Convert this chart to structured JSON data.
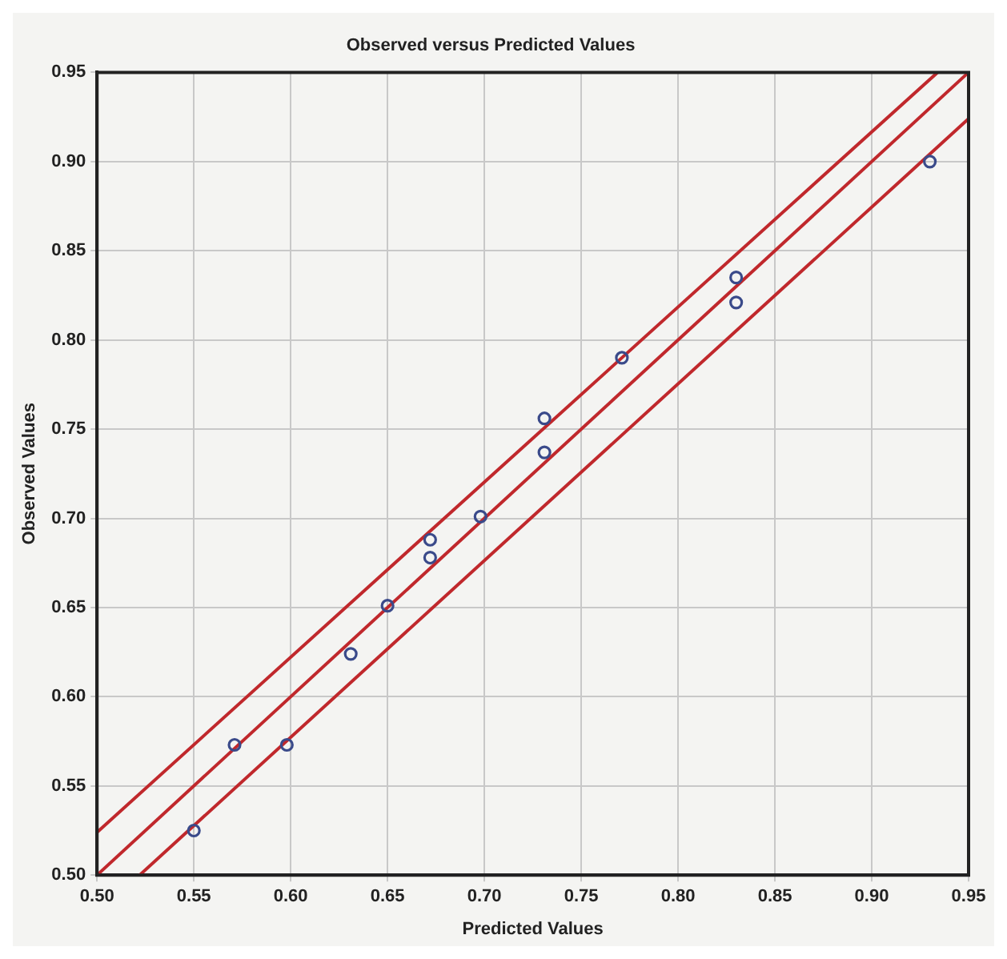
{
  "chart_data": {
    "type": "scatter",
    "title": "Observed versus Predicted Values",
    "xlabel": "Predicted Values",
    "ylabel": "Observed Values",
    "xlim": [
      0.5,
      0.95
    ],
    "ylim": [
      0.5,
      0.95
    ],
    "xticks": [
      {
        "value": 0.5,
        "label": "0.50"
      },
      {
        "value": 0.55,
        "label": "0.55"
      },
      {
        "value": 0.6,
        "label": "0.60"
      },
      {
        "value": 0.65,
        "label": "0.65"
      },
      {
        "value": 0.7,
        "label": "0.70"
      },
      {
        "value": 0.75,
        "label": "0.75"
      },
      {
        "value": 0.8,
        "label": "0.80"
      },
      {
        "value": 0.85,
        "label": "0.85"
      },
      {
        "value": 0.9,
        "label": "0.90"
      },
      {
        "value": 0.95,
        "label": "0.95"
      }
    ],
    "yticks": [
      {
        "value": 0.5,
        "label": "0.50"
      },
      {
        "value": 0.55,
        "label": "0.55"
      },
      {
        "value": 0.6,
        "label": "0.60"
      },
      {
        "value": 0.65,
        "label": "0.65"
      },
      {
        "value": 0.7,
        "label": "0.70"
      },
      {
        "value": 0.75,
        "label": "0.75"
      },
      {
        "value": 0.8,
        "label": "0.80"
      },
      {
        "value": 0.85,
        "label": "0.85"
      },
      {
        "value": 0.9,
        "label": "0.90"
      },
      {
        "value": 0.95,
        "label": "0.95"
      }
    ],
    "grid": true,
    "legend": false,
    "series": [
      {
        "marker": "circle",
        "color": "#3a4a8a",
        "x": [
          0.55,
          0.571,
          0.598,
          0.631,
          0.65,
          0.672,
          0.672,
          0.698,
          0.731,
          0.731,
          0.771,
          0.83,
          0.83,
          0.93
        ],
        "values": [
          0.525,
          0.573,
          0.573,
          0.624,
          0.651,
          0.688,
          0.678,
          0.701,
          0.756,
          0.737,
          0.79,
          0.835,
          0.821,
          0.9
        ]
      },
      {
        "type": "line",
        "marker": "none",
        "color": "#c0282c",
        "line_style": "solid",
        "x": [
          0.5,
          0.95
        ],
        "values": [
          0.5,
          0.95
        ]
      },
      {
        "type": "line",
        "marker": "none",
        "color": "#c0282c",
        "line_style": "solid",
        "x": [
          0.5,
          0.934
        ],
        "values": [
          0.524,
          0.95
        ]
      },
      {
        "type": "line",
        "marker": "none",
        "color": "#c0282c",
        "line_style": "solid",
        "x": [
          0.522,
          0.95
        ],
        "values": [
          0.5,
          0.924
        ]
      }
    ]
  }
}
